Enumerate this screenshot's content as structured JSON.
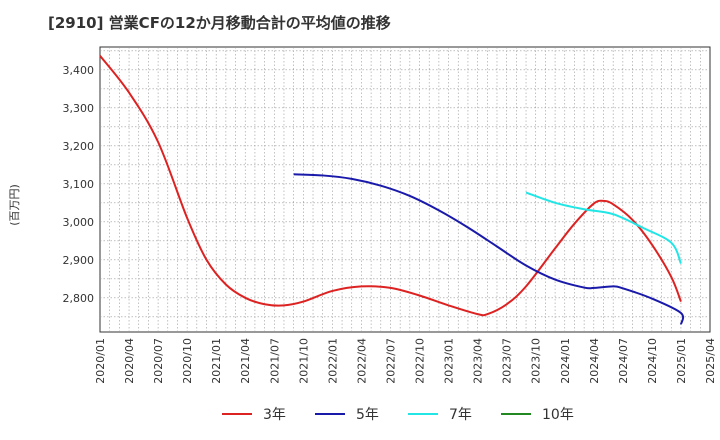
{
  "chart_data": {
    "type": "line",
    "title": "[2910]  営業CFの12か月移動合計の平均値の推移",
    "ylabel": "(百万円)",
    "xlabel": "",
    "ylim": [
      2710,
      3460
    ],
    "yticks": [
      2800,
      2900,
      3000,
      3100,
      3200,
      3300,
      3400
    ],
    "ytick_labels": [
      "2,800",
      "2,900",
      "3,000",
      "3,100",
      "3,200",
      "3,300",
      "3,400"
    ],
    "xtick_labels": [
      "2020/01",
      "2020/04",
      "2020/07",
      "2020/10",
      "2021/01",
      "2021/04",
      "2021/07",
      "2021/10",
      "2022/01",
      "2022/04",
      "2022/07",
      "2022/10",
      "2023/01",
      "2023/04",
      "2023/07",
      "2023/10",
      "2024/01",
      "2024/04",
      "2024/07",
      "2024/10",
      "2025/01",
      "2025/04"
    ],
    "grid": true,
    "legend_position": "bottom",
    "series": [
      {
        "name": "3年",
        "color": "#dd2222",
        "points": [
          [
            "2020/01",
            3437
          ],
          [
            "2020/04",
            3340
          ],
          [
            "2020/07",
            3210
          ],
          [
            "2020/10",
            3010
          ],
          [
            "2020/12",
            2900
          ],
          [
            "2021/02",
            2835
          ],
          [
            "2021/04",
            2800
          ],
          [
            "2021/06",
            2783
          ],
          [
            "2021/08",
            2780
          ],
          [
            "2021/10",
            2790
          ],
          [
            "2022/01",
            2818
          ],
          [
            "2022/04",
            2830
          ],
          [
            "2022/07",
            2826
          ],
          [
            "2022/10",
            2806
          ],
          [
            "2023/01",
            2780
          ],
          [
            "2023/04",
            2757
          ],
          [
            "2023/05",
            2757
          ],
          [
            "2023/07",
            2783
          ],
          [
            "2023/09",
            2830
          ],
          [
            "2023/12",
            2930
          ],
          [
            "2024/02",
            2995
          ],
          [
            "2024/04",
            3048
          ],
          [
            "2024/05",
            3055
          ],
          [
            "2024/06",
            3046
          ],
          [
            "2024/08",
            3005
          ],
          [
            "2024/10",
            2940
          ],
          [
            "2024/12",
            2855
          ],
          [
            "2025/01",
            2790
          ]
        ]
      },
      {
        "name": "5年",
        "color": "#1a1aaa",
        "points": [
          [
            "2021/09",
            3125
          ],
          [
            "2021/12",
            3122
          ],
          [
            "2022/03",
            3113
          ],
          [
            "2022/06",
            3095
          ],
          [
            "2022/09",
            3068
          ],
          [
            "2022/12",
            3030
          ],
          [
            "2023/03",
            2985
          ],
          [
            "2023/06",
            2935
          ],
          [
            "2023/09",
            2885
          ],
          [
            "2023/12",
            2848
          ],
          [
            "2024/03",
            2827
          ],
          [
            "2024/04",
            2826
          ],
          [
            "2024/06",
            2830
          ],
          [
            "2024/07",
            2825
          ],
          [
            "2024/10",
            2798
          ],
          [
            "2025/01",
            2760
          ],
          [
            "2025/01",
            2730
          ]
        ]
      },
      {
        "name": "7年",
        "color": "#22e5e5",
        "points": [
          [
            "2023/09",
            3077
          ],
          [
            "2023/12",
            3050
          ],
          [
            "2024/03",
            3033
          ],
          [
            "2024/06",
            3020
          ],
          [
            "2024/09",
            2985
          ],
          [
            "2024/12",
            2945
          ],
          [
            "2025/01",
            2890
          ]
        ]
      },
      {
        "name": "10年",
        "color": "#228822",
        "points": []
      }
    ]
  }
}
